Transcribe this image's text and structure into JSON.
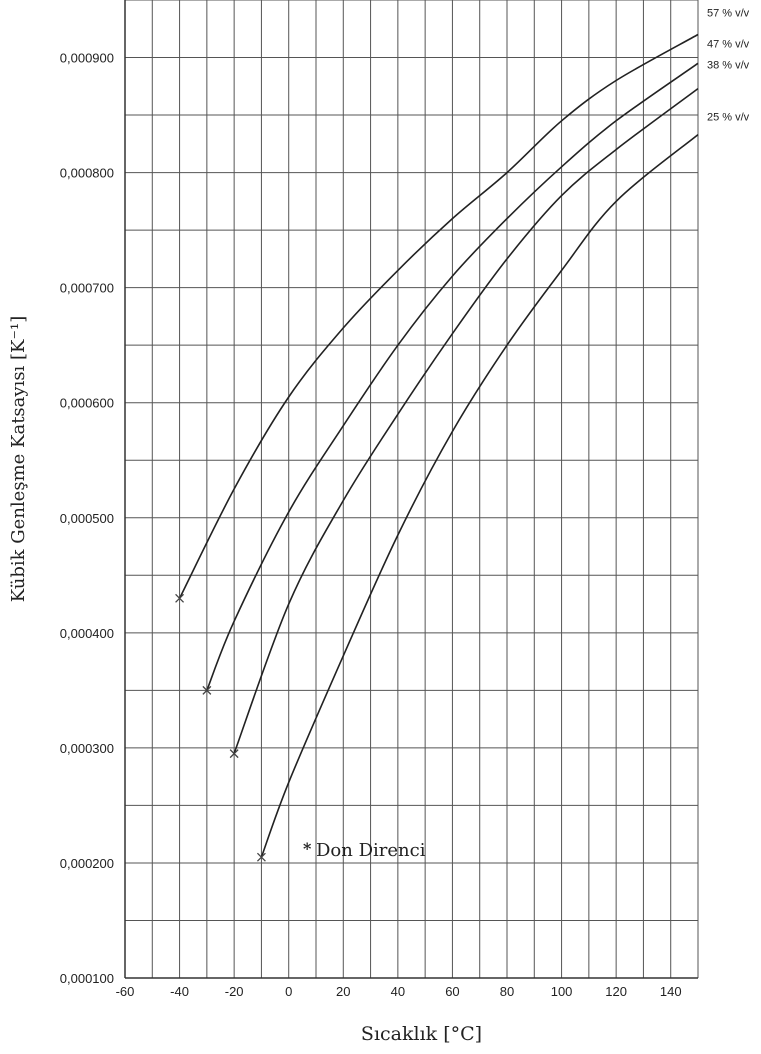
{
  "chart_data": {
    "type": "line",
    "xlabel": "Sıcaklık [°C]",
    "ylabel": "Kübik Genleşme Katsayısı  [K⁻¹]",
    "x_ticks": [
      -60,
      -40,
      -20,
      0,
      20,
      40,
      60,
      80,
      100,
      120,
      140
    ],
    "y_ticks": [
      0.0001,
      0.0002,
      0.0003,
      0.0004,
      0.0005,
      0.0006,
      0.0007,
      0.0008,
      0.0009
    ],
    "y_tick_labels": [
      "0,000100",
      "0,000200",
      "0,000300",
      "0,000400",
      "0,000500",
      "0,000600",
      "0,000700",
      "0,000800",
      "0,000900"
    ],
    "xlim": [
      -60,
      150
    ],
    "ylim": [
      0.0001,
      0.00095
    ],
    "grid": true,
    "annotation": {
      "marker": "*",
      "text": "Don Direnci"
    },
    "series": [
      {
        "name": "57 % v/v",
        "x": [
          -40,
          -20,
          0,
          20,
          40,
          60,
          80,
          100,
          120,
          150
        ],
        "y": [
          0.00043,
          0.000525,
          0.000605,
          0.000665,
          0.000715,
          0.00076,
          0.0008,
          0.000845,
          0.00088,
          0.00092
        ]
      },
      {
        "name": "47 % v/v",
        "x": [
          -30,
          -20,
          0,
          20,
          40,
          60,
          80,
          100,
          120,
          150
        ],
        "y": [
          0.00035,
          0.00041,
          0.000505,
          0.00058,
          0.00065,
          0.00071,
          0.00076,
          0.000805,
          0.000845,
          0.000895
        ]
      },
      {
        "name": "38 % v/v",
        "x": [
          -20,
          0,
          20,
          40,
          60,
          80,
          100,
          120,
          150
        ],
        "y": [
          0.000295,
          0.000425,
          0.000515,
          0.00059,
          0.00066,
          0.000725,
          0.00078,
          0.00082,
          0.000873
        ]
      },
      {
        "name": "25 % v/v",
        "x": [
          -10,
          0,
          20,
          40,
          60,
          80,
          100,
          120,
          150
        ],
        "y": [
          0.000205,
          0.00027,
          0.00038,
          0.000485,
          0.000575,
          0.00065,
          0.000715,
          0.000775,
          0.000833
        ]
      }
    ]
  }
}
